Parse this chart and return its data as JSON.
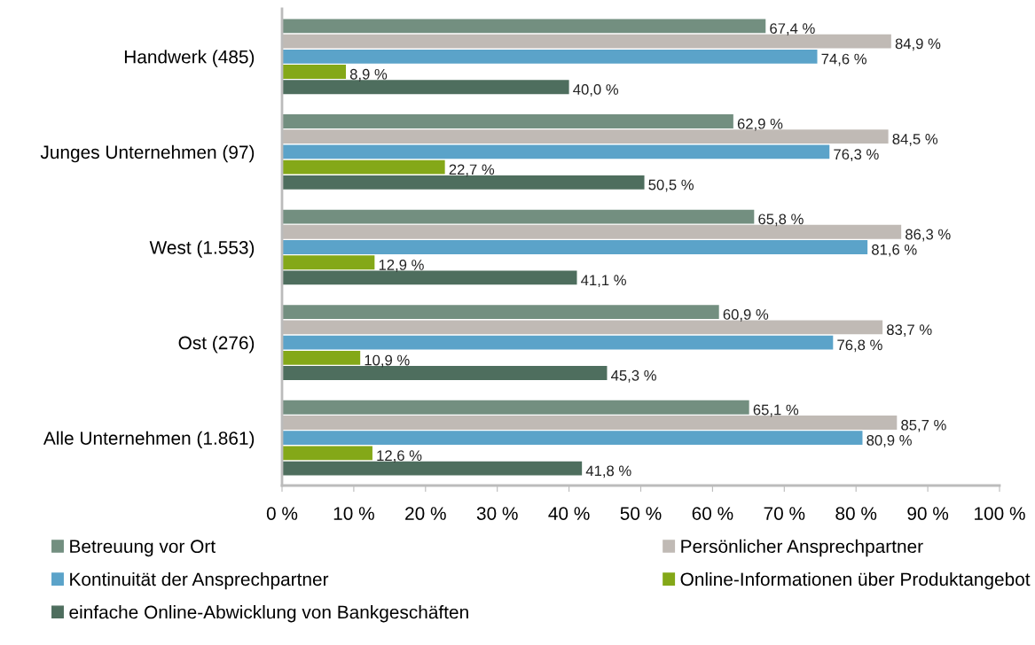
{
  "chart_data": {
    "type": "bar",
    "orientation": "horizontal",
    "legend": "bottom",
    "grid": false,
    "categories": [
      "Handwerk (485)",
      "Junges Unternehmen (97)",
      "West (1.553)",
      "Ost (276)",
      "Alle Unternehmen (1.861)"
    ],
    "xlim": [
      0,
      100
    ],
    "xticks": [
      {
        "value": 0,
        "label": "0 %"
      },
      {
        "value": 10,
        "label": "10 %"
      },
      {
        "value": 20,
        "label": "20 %"
      },
      {
        "value": 30,
        "label": "30 %"
      },
      {
        "value": 40,
        "label": "40 %"
      },
      {
        "value": 50,
        "label": "50 %"
      },
      {
        "value": 60,
        "label": "60 %"
      },
      {
        "value": 70,
        "label": "70 %"
      },
      {
        "value": 80,
        "label": "80 %"
      },
      {
        "value": 90,
        "label": "90 %"
      },
      {
        "value": 100,
        "label": "100 %"
      }
    ],
    "series": [
      {
        "name": "Betreuung vor Ort",
        "color": "#738f80",
        "values": [
          67.4,
          62.9,
          65.8,
          60.9,
          65.1
        ],
        "value_labels": [
          "67,4 %",
          "62,9 %",
          "65,8 %",
          "60,9 %",
          "65,1 %"
        ]
      },
      {
        "name": "Persönlicher Ansprechpartner",
        "color": "#c0bab5",
        "values": [
          84.9,
          84.5,
          86.3,
          83.7,
          85.7
        ],
        "value_labels": [
          "84,9 %",
          "84,5 %",
          "86,3 %",
          "83,7 %",
          "85,7 %"
        ]
      },
      {
        "name": "Kontinuität der Ansprechpartner",
        "color": "#5ba3c9",
        "values": [
          74.6,
          76.3,
          81.6,
          76.8,
          80.9
        ],
        "value_labels": [
          "74,6 %",
          "76,3 %",
          "81,6 %",
          "76,8 %",
          "80,9 %"
        ]
      },
      {
        "name": "Online-Informationen über Produktangebot",
        "color": "#84a818",
        "values": [
          8.9,
          22.7,
          12.9,
          10.9,
          12.6
        ],
        "value_labels": [
          "8,9 %",
          "22,7 %",
          "12,9 %",
          "10,9 %",
          "12,6 %"
        ]
      },
      {
        "name": "einfache Online-Abwicklung von Bankgeschäften",
        "color": "#4e6e5e",
        "values": [
          40.0,
          50.5,
          41.1,
          45.3,
          41.8
        ],
        "value_labels": [
          "40,0 %",
          "50,5 %",
          "41,1 %",
          "45,3 %",
          "41,8 %"
        ]
      }
    ]
  }
}
